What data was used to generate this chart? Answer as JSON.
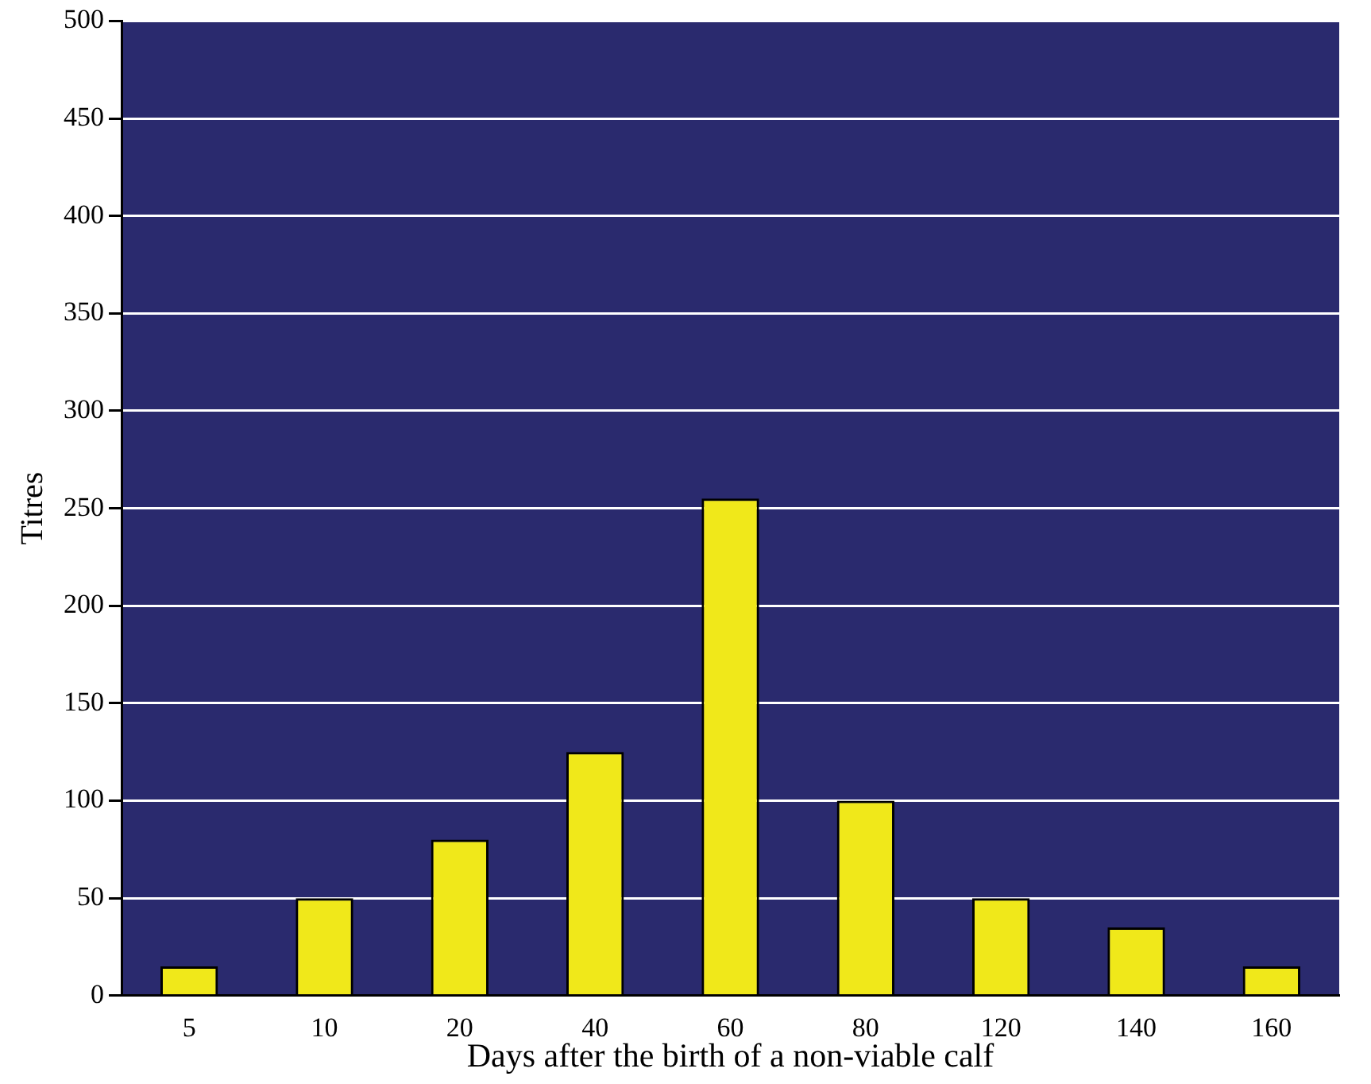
{
  "chart_data": {
    "type": "bar",
    "xlabel": "Days after the birth of a non-viable calf",
    "ylabel": "Titres",
    "categories": [
      "5",
      "10",
      "20",
      "40",
      "60",
      "80",
      "120",
      "140",
      "160"
    ],
    "values": [
      15,
      50,
      80,
      125,
      255,
      100,
      50,
      35,
      15
    ],
    "color": "#f0e81a",
    "ylim": [
      0,
      500
    ],
    "yticks": [
      0,
      50,
      100,
      150,
      200,
      250,
      300,
      350,
      400,
      450,
      500
    ],
    "grid": "y",
    "legend": false
  }
}
